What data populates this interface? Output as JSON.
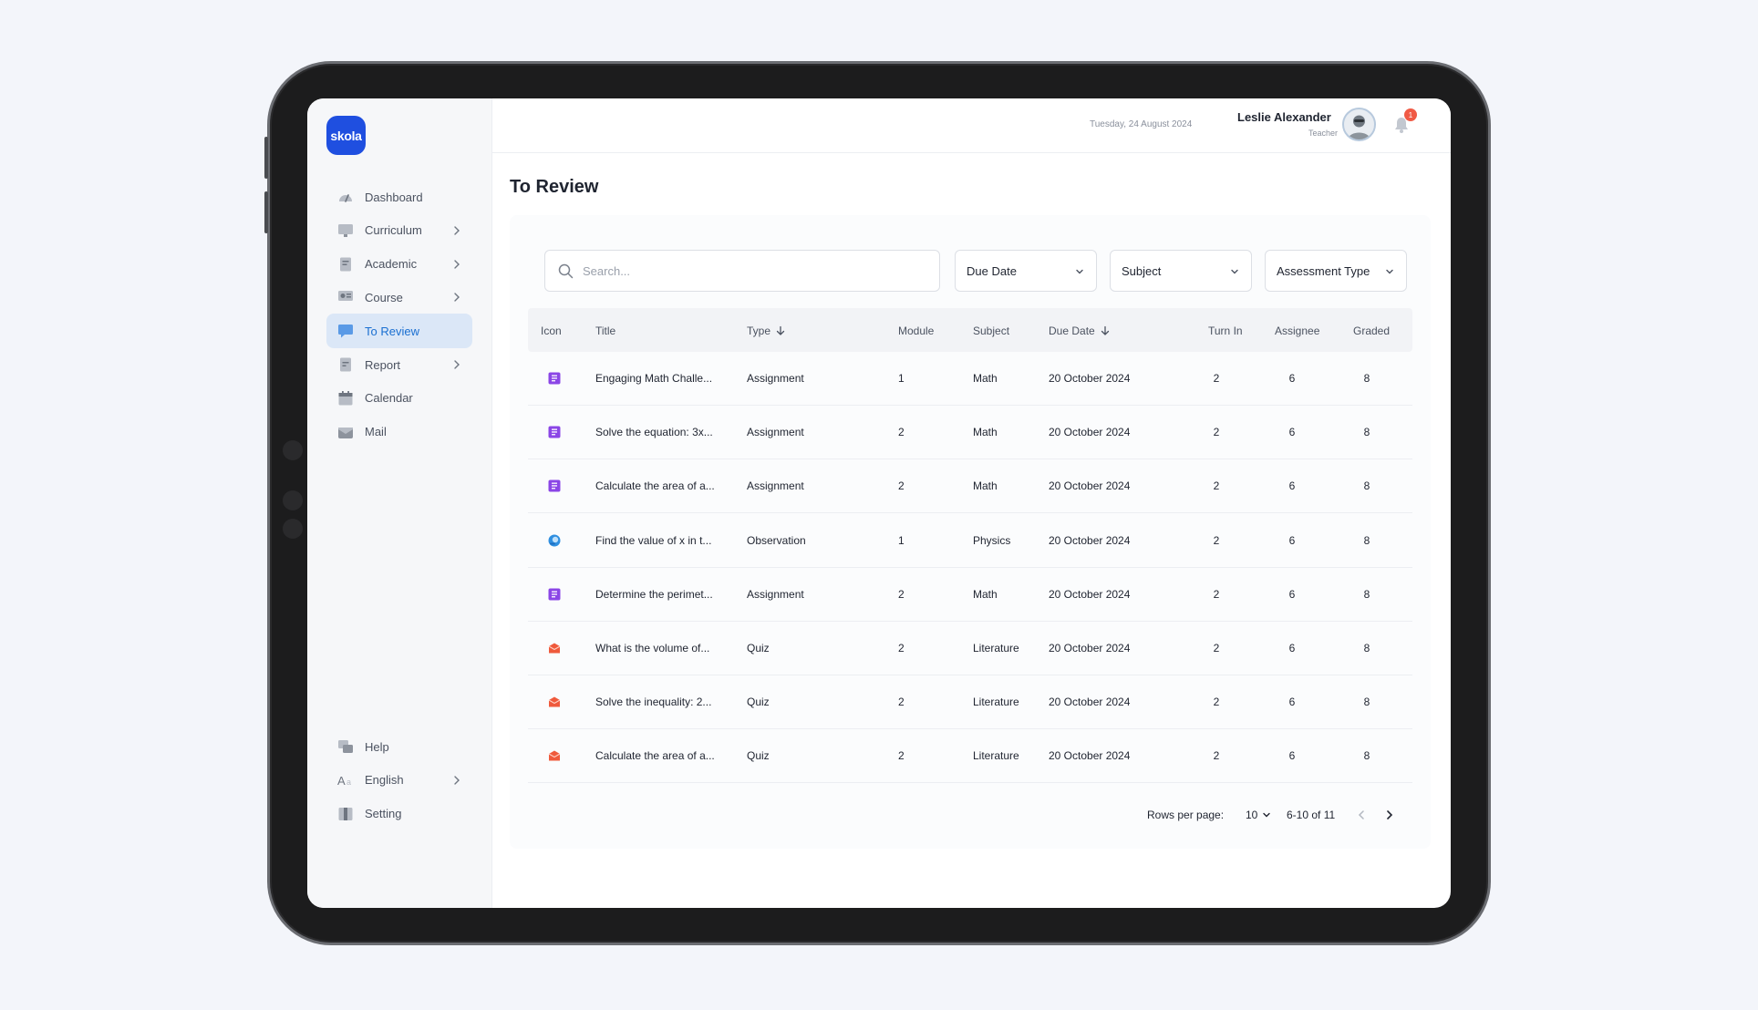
{
  "app": {
    "logo_text": "skola",
    "brand_color": "#1f4fe0",
    "accent": "#1a6fd1"
  },
  "sidebar": {
    "items": [
      {
        "label": "Dashboard",
        "icon": "dashboard-icon",
        "chevron": false,
        "active": false
      },
      {
        "label": "Curriculum",
        "icon": "curriculum-icon",
        "chevron": true,
        "active": false
      },
      {
        "label": "Academic",
        "icon": "academic-icon",
        "chevron": true,
        "active": false
      },
      {
        "label": "Course",
        "icon": "course-icon",
        "chevron": true,
        "active": false
      },
      {
        "label": "To Review",
        "icon": "review-icon",
        "chevron": false,
        "active": true
      },
      {
        "label": "Report",
        "icon": "report-icon",
        "chevron": true,
        "active": false
      },
      {
        "label": "Calendar",
        "icon": "calendar-icon",
        "chevron": false,
        "active": false
      },
      {
        "label": "Mail",
        "icon": "mail-icon",
        "chevron": false,
        "active": false
      }
    ],
    "bottom_items": [
      {
        "label": "Help",
        "icon": "help-icon",
        "chevron": false
      },
      {
        "label": "English",
        "icon": "language-icon",
        "chevron": true
      },
      {
        "label": "Setting",
        "icon": "settings-icon",
        "chevron": false
      }
    ]
  },
  "header": {
    "date": "Tuesday, 24 August 2024",
    "user_name": "Leslie Alexander",
    "user_role": "Teacher",
    "notification_count": "1"
  },
  "main": {
    "title": "To Review",
    "search_placeholder": "Search...",
    "filters": {
      "due_date": "Due Date",
      "subject": "Subject",
      "assessment_type": "Assessment Type"
    },
    "columns": {
      "icon": "Icon",
      "title": "Title",
      "type": "Type",
      "module": "Module",
      "subject": "Subject",
      "due_date": "Due Date",
      "turn_in": "Turn In",
      "assignee": "Assignee",
      "graded": "Graded"
    },
    "rows": [
      {
        "kind": "assignment",
        "title": "Engaging Math Challe...",
        "type": "Assignment",
        "module": "1",
        "subject": "Math",
        "due_date": "20 October 2024",
        "turn_in": "2",
        "assignee": "6",
        "graded": "8"
      },
      {
        "kind": "assignment",
        "title": "Solve the equation: 3x...",
        "type": "Assignment",
        "module": "2",
        "subject": "Math",
        "due_date": "20 October 2024",
        "turn_in": "2",
        "assignee": "6",
        "graded": "8"
      },
      {
        "kind": "assignment",
        "title": "Calculate the area of a...",
        "type": "Assignment",
        "module": "2",
        "subject": "Math",
        "due_date": "20 October 2024",
        "turn_in": "2",
        "assignee": "6",
        "graded": "8"
      },
      {
        "kind": "observation",
        "title": "Find the value of x in t...",
        "type": "Observation",
        "module": "1",
        "subject": "Physics",
        "due_date": "20 October 2024",
        "turn_in": "2",
        "assignee": "6",
        "graded": "8"
      },
      {
        "kind": "assignment",
        "title": "Determine the perimet...",
        "type": "Assignment",
        "module": "2",
        "subject": "Math",
        "due_date": "20 October 2024",
        "turn_in": "2",
        "assignee": "6",
        "graded": "8"
      },
      {
        "kind": "quiz",
        "title": "What is the volume of...",
        "type": "Quiz",
        "module": "2",
        "subject": "Literature",
        "due_date": "20 October 2024",
        "turn_in": "2",
        "assignee": "6",
        "graded": "8"
      },
      {
        "kind": "quiz",
        "title": "Solve the inequality: 2...",
        "type": "Quiz",
        "module": "2",
        "subject": "Literature",
        "due_date": "20 October 2024",
        "turn_in": "2",
        "assignee": "6",
        "graded": "8"
      },
      {
        "kind": "quiz",
        "title": "Calculate the area of a...",
        "type": "Quiz",
        "module": "2",
        "subject": "Literature",
        "due_date": "20 October 2024",
        "turn_in": "2",
        "assignee": "6",
        "graded": "8"
      }
    ],
    "pagination": {
      "rows_per_page_label": "Rows per page:",
      "rows_per_page": "10",
      "range": "6-10 of 11"
    },
    "icon_colors": {
      "assignment": "#8b46e6",
      "observation": "#2f8fe0",
      "quiz": "#ef5a3c"
    }
  }
}
